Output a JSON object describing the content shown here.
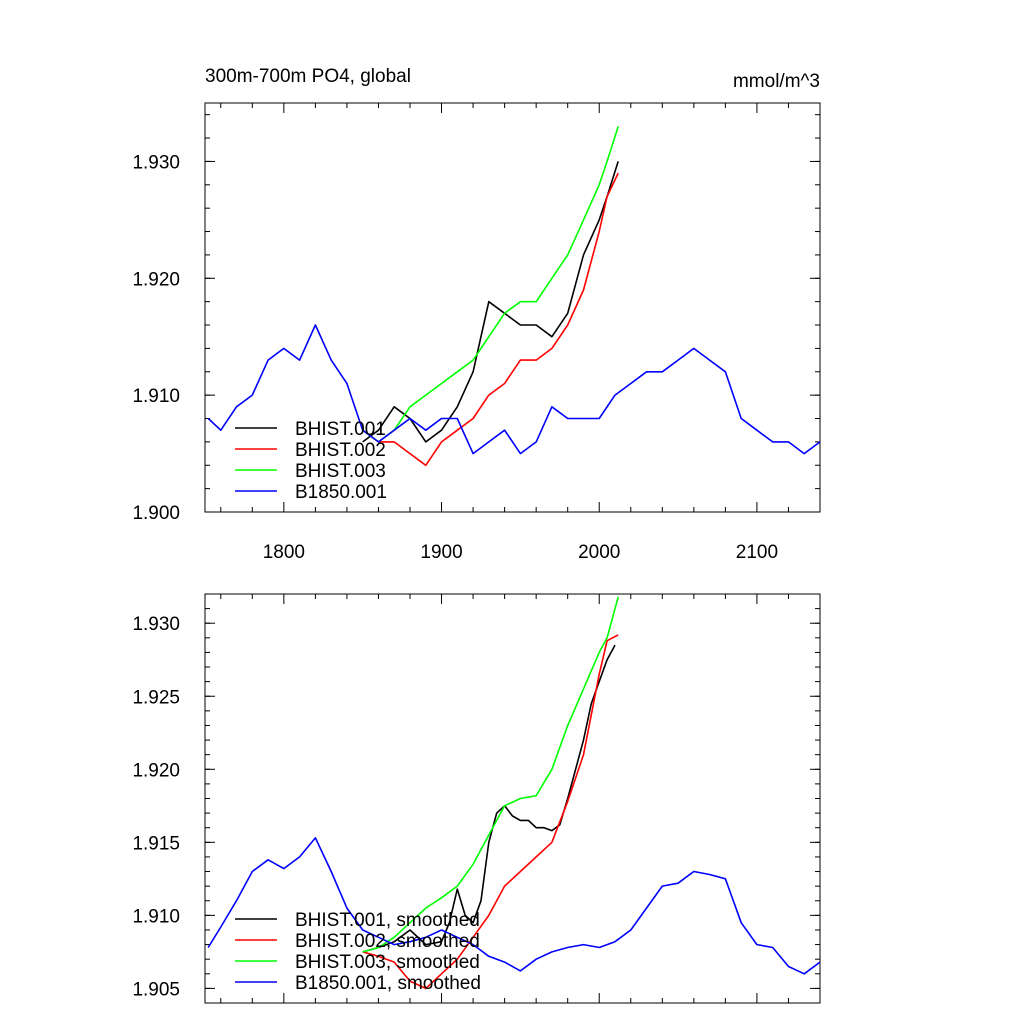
{
  "chart_data": [
    {
      "type": "line",
      "title": "300m-700m PO4, global",
      "units": "mmol/m^3",
      "xlim": [
        1750,
        2140
      ],
      "ylim": [
        1.9,
        1.935
      ],
      "xticks": [
        1800,
        1900,
        2000,
        2100
      ],
      "xtick_labels": [
        "1800",
        "1900",
        "2000",
        "2100"
      ],
      "yticks": [
        1.9,
        1.91,
        1.92,
        1.93
      ],
      "ytick_labels": [
        "1.900",
        "1.910",
        "1.920",
        "1.930"
      ],
      "legend_position": "lower-left",
      "series": [
        {
          "name": "BHIST.001",
          "color": "#000000",
          "x": [
            1850,
            1860,
            1870,
            1880,
            1890,
            1900,
            1910,
            1920,
            1930,
            1940,
            1950,
            1960,
            1970,
            1980,
            1990,
            2000,
            2005,
            2012
          ],
          "y": [
            1.906,
            1.907,
            1.909,
            1.908,
            1.906,
            1.907,
            1.909,
            1.912,
            1.918,
            1.917,
            1.916,
            1.916,
            1.915,
            1.917,
            1.922,
            1.925,
            1.927,
            1.93
          ]
        },
        {
          "name": "BHIST.002",
          "color": "#ff0000",
          "x": [
            1850,
            1860,
            1870,
            1880,
            1890,
            1900,
            1910,
            1920,
            1930,
            1940,
            1950,
            1960,
            1970,
            1980,
            1990,
            2000,
            2005,
            2012
          ],
          "y": [
            1.907,
            1.906,
            1.906,
            1.905,
            1.904,
            1.906,
            1.907,
            1.908,
            1.91,
            1.911,
            1.913,
            1.913,
            1.914,
            1.916,
            1.919,
            1.924,
            1.927,
            1.929
          ]
        },
        {
          "name": "BHIST.003",
          "color": "#00ff00",
          "x": [
            1850,
            1860,
            1870,
            1880,
            1890,
            1900,
            1910,
            1920,
            1930,
            1940,
            1950,
            1960,
            1970,
            1980,
            1990,
            2000,
            2005,
            2012
          ],
          "y": [
            1.907,
            1.906,
            1.907,
            1.909,
            1.91,
            1.911,
            1.912,
            1.913,
            1.915,
            1.917,
            1.918,
            1.918,
            1.92,
            1.922,
            1.925,
            1.928,
            1.93,
            1.933
          ]
        },
        {
          "name": "B1850.001",
          "color": "#0000ff",
          "x": [
            1752,
            1760,
            1770,
            1780,
            1790,
            1800,
            1810,
            1820,
            1830,
            1840,
            1850,
            1860,
            1870,
            1880,
            1890,
            1900,
            1910,
            1920,
            1930,
            1940,
            1950,
            1960,
            1970,
            1980,
            1990,
            2000,
            2010,
            2020,
            2030,
            2040,
            2050,
            2060,
            2070,
            2080,
            2090,
            2100,
            2110,
            2120,
            2130,
            2140
          ],
          "y": [
            1.908,
            1.907,
            1.909,
            1.91,
            1.913,
            1.914,
            1.913,
            1.916,
            1.913,
            1.911,
            1.907,
            1.906,
            1.907,
            1.908,
            1.907,
            1.908,
            1.908,
            1.905,
            1.906,
            1.907,
            1.905,
            1.906,
            1.909,
            1.908,
            1.908,
            1.908,
            1.91,
            1.911,
            1.912,
            1.912,
            1.913,
            1.914,
            1.913,
            1.912,
            1.908,
            1.907,
            1.906,
            1.906,
            1.905,
            1.906
          ]
        }
      ]
    },
    {
      "type": "line",
      "xlim": [
        1750,
        2140
      ],
      "ylim": [
        1.904,
        1.932
      ],
      "xticks": [
        1800,
        1900,
        2000,
        2100
      ],
      "yticks": [
        1.905,
        1.91,
        1.915,
        1.92,
        1.925,
        1.93
      ],
      "ytick_labels": [
        "1.905",
        "1.910",
        "1.915",
        "1.920",
        "1.925",
        "1.930"
      ],
      "legend_position": "lower-left",
      "series": [
        {
          "name": "BHIST.001, smoothed",
          "color": "#000000",
          "x": [
            1850,
            1860,
            1870,
            1880,
            1890,
            1900,
            1905,
            1910,
            1915,
            1920,
            1925,
            1930,
            1935,
            1940,
            1945,
            1950,
            1955,
            1960,
            1965,
            1970,
            1975,
            1980,
            1985,
            1990,
            1995,
            2000,
            2005,
            2010
          ],
          "y": [
            1.9075,
            1.9078,
            1.9082,
            1.909,
            1.908,
            1.9082,
            1.9095,
            1.9118,
            1.91,
            1.9095,
            1.911,
            1.915,
            1.917,
            1.9175,
            1.9168,
            1.9165,
            1.9165,
            1.916,
            1.916,
            1.9158,
            1.9162,
            1.918,
            1.92,
            1.922,
            1.9245,
            1.926,
            1.9275,
            1.9285
          ]
        },
        {
          "name": "BHIST.002, smoothed",
          "color": "#ff0000",
          "x": [
            1850,
            1860,
            1870,
            1880,
            1890,
            1900,
            1910,
            1920,
            1930,
            1940,
            1950,
            1960,
            1970,
            1980,
            1990,
            2000,
            2005,
            2012
          ],
          "y": [
            1.9075,
            1.9072,
            1.9068,
            1.9055,
            1.905,
            1.906,
            1.907,
            1.9085,
            1.91,
            1.912,
            1.913,
            1.914,
            1.915,
            1.9178,
            1.921,
            1.9265,
            1.9288,
            1.9292
          ]
        },
        {
          "name": "BHIST.003, smoothed",
          "color": "#00ff00",
          "x": [
            1850,
            1860,
            1870,
            1880,
            1890,
            1900,
            1910,
            1920,
            1930,
            1940,
            1950,
            1960,
            1970,
            1980,
            1990,
            2000,
            2005,
            2012
          ],
          "y": [
            1.9075,
            1.9078,
            1.9085,
            1.9095,
            1.9105,
            1.9112,
            1.912,
            1.9135,
            1.9155,
            1.9175,
            1.918,
            1.9182,
            1.92,
            1.923,
            1.9255,
            1.928,
            1.929,
            1.9318
          ]
        },
        {
          "name": "B1850.001, smoothed",
          "color": "#0000ff",
          "x": [
            1752,
            1760,
            1770,
            1780,
            1790,
            1800,
            1810,
            1820,
            1830,
            1840,
            1850,
            1860,
            1870,
            1880,
            1890,
            1900,
            1910,
            1920,
            1930,
            1940,
            1950,
            1960,
            1970,
            1980,
            1990,
            2000,
            2010,
            2020,
            2030,
            2040,
            2050,
            2060,
            2070,
            2080,
            2090,
            2100,
            2110,
            2120,
            2130,
            2140
          ],
          "y": [
            1.9078,
            1.9092,
            1.911,
            1.913,
            1.9138,
            1.9132,
            1.914,
            1.9153,
            1.913,
            1.9105,
            1.909,
            1.9085,
            1.908,
            1.9082,
            1.9085,
            1.909,
            1.9085,
            1.908,
            1.9072,
            1.9068,
            1.9062,
            1.907,
            1.9075,
            1.9078,
            1.908,
            1.9078,
            1.9082,
            1.909,
            1.9105,
            1.912,
            1.9122,
            1.913,
            1.9128,
            1.9125,
            1.9095,
            1.908,
            1.9078,
            1.9065,
            1.906,
            1.9068
          ]
        }
      ]
    }
  ]
}
